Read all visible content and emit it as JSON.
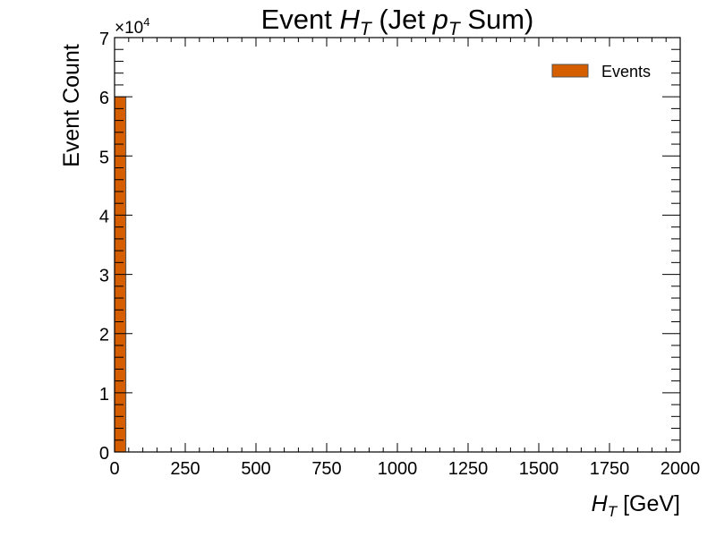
{
  "chart_data": {
    "type": "bar",
    "title": {
      "prefix": "Event ",
      "var": "H",
      "var_sub": "T",
      "mid": " (Jet ",
      "var2": "p",
      "var2_sub": "T",
      "suffix": " Sum)"
    },
    "xlabel": {
      "var": "H",
      "var_sub": "T",
      "unit": " [GeV]"
    },
    "ylabel": "Event Count",
    "y_multiplier": {
      "base": "×10",
      "exp": "4"
    },
    "xlim": [
      0,
      2000
    ],
    "ylim": [
      0,
      70000
    ],
    "x_ticks": [
      0,
      250,
      500,
      750,
      1000,
      1250,
      1500,
      1750,
      2000
    ],
    "y_ticks": [
      0,
      10000,
      20000,
      30000,
      40000,
      50000,
      60000,
      70000
    ],
    "y_tick_labels": [
      "0",
      "1",
      "2",
      "3",
      "4",
      "5",
      "6",
      "7"
    ],
    "bin_width": 40,
    "bins": [
      {
        "x0": 0,
        "x1": 40,
        "value": 60000
      }
    ],
    "legend": {
      "position": "top-right",
      "label": "Events"
    },
    "series_color": "#d55e00",
    "edge_color": "#555555",
    "grid": false
  }
}
